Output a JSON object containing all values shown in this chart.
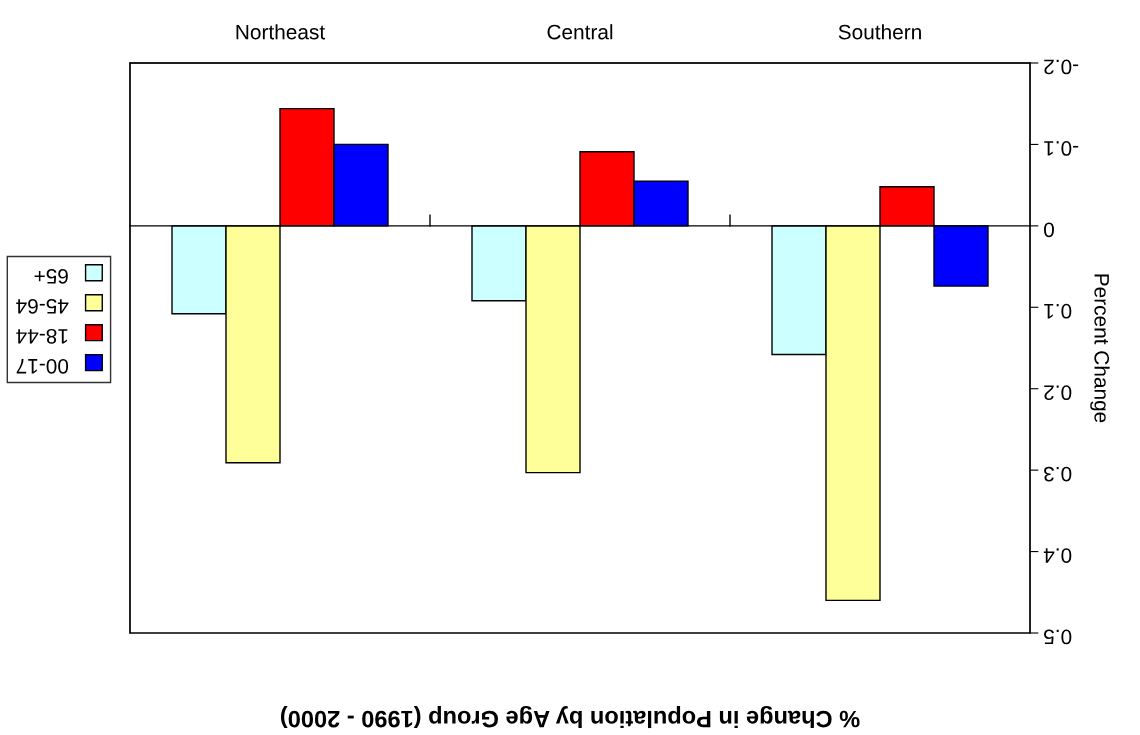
{
  "chart_data": {
    "type": "bar",
    "title": "% Change in Population by Age Group (1990 - 2000)",
    "ylabel": "Percent Change",
    "categories": [
      "Northeast",
      "Central",
      "Southern"
    ],
    "series": [
      {
        "name": "65+",
        "color": "#ccffff",
        "values": [
          0.108,
          0.092,
          0.158
        ]
      },
      {
        "name": "45-64",
        "color": "#ffff99",
        "values": [
          0.291,
          0.303,
          0.46
        ]
      },
      {
        "name": "18-44",
        "color": "#ff0000",
        "values": [
          -0.144,
          -0.091,
          -0.048
        ]
      },
      {
        "name": "00-17",
        "color": "#0000ff",
        "values": [
          -0.1,
          -0.055,
          0.074
        ]
      }
    ],
    "ylim": [
      0.5,
      -0.2
    ],
    "yticks": [
      -0.2,
      -0.1,
      0,
      0.1,
      0.2,
      0.3,
      0.4,
      0.5
    ],
    "legend": "left"
  }
}
